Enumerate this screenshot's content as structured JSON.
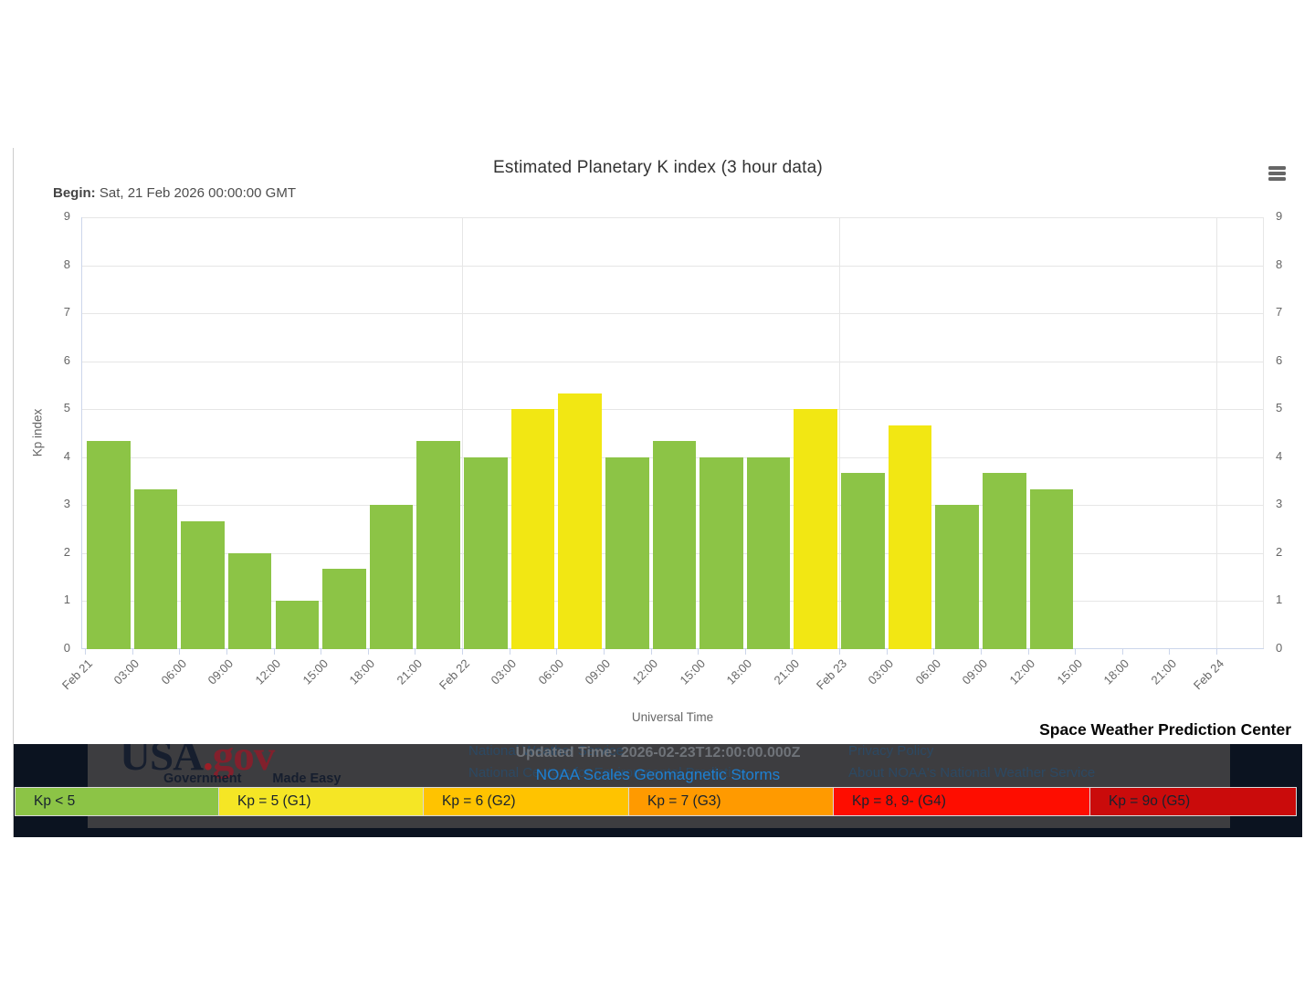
{
  "chart": {
    "title": "Estimated Planetary K index (3 hour data)",
    "begin_label": "Begin:",
    "begin_value": "Sat, 21 Feb 2026 00:00:00 GMT",
    "xlabel": "Universal Time",
    "ylabel": "Kp index",
    "credit": "Space Weather Prediction Center",
    "menu_icon": "hamburger-icon"
  },
  "chart_data": {
    "type": "bar",
    "title": "Estimated Planetary K index (3 hour data)",
    "xlabel": "Universal Time",
    "ylabel": "Kp index",
    "ylim": [
      0,
      9
    ],
    "y_ticks": [
      0,
      1,
      2,
      3,
      4,
      5,
      6,
      7,
      8,
      9
    ],
    "x_tick_labels": [
      "Feb 21",
      "03:00",
      "06:00",
      "09:00",
      "12:00",
      "15:00",
      "18:00",
      "21:00",
      "Feb 22",
      "03:00",
      "06:00",
      "09:00",
      "12:00",
      "15:00",
      "18:00",
      "21:00",
      "Feb 23",
      "03:00",
      "06:00",
      "09:00",
      "12:00",
      "15:00",
      "18:00",
      "21:00",
      "Feb 24"
    ],
    "day_gridline_tick_indices": [
      8,
      16,
      24
    ],
    "grid": true,
    "legend_position": "bottom",
    "bar_colors": {
      "green": "#8cc446",
      "yellow": "#f2e713"
    },
    "bars": [
      {
        "slot": "Feb 21 00:00-03:00",
        "value": 4.33,
        "color": "green"
      },
      {
        "slot": "Feb 21 03:00-06:00",
        "value": 3.33,
        "color": "green"
      },
      {
        "slot": "Feb 21 06:00-09:00",
        "value": 2.67,
        "color": "green"
      },
      {
        "slot": "Feb 21 09:00-12:00",
        "value": 2.0,
        "color": "green"
      },
      {
        "slot": "Feb 21 12:00-15:00",
        "value": 1.0,
        "color": "green"
      },
      {
        "slot": "Feb 21 15:00-18:00",
        "value": 1.67,
        "color": "green"
      },
      {
        "slot": "Feb 21 18:00-21:00",
        "value": 3.0,
        "color": "green"
      },
      {
        "slot": "Feb 21 21:00-24:00",
        "value": 4.33,
        "color": "green"
      },
      {
        "slot": "Feb 22 00:00-03:00",
        "value": 4.0,
        "color": "green"
      },
      {
        "slot": "Feb 22 03:00-06:00",
        "value": 5.0,
        "color": "yellow"
      },
      {
        "slot": "Feb 22 06:00-09:00",
        "value": 5.33,
        "color": "yellow"
      },
      {
        "slot": "Feb 22 09:00-12:00",
        "value": 4.0,
        "color": "green"
      },
      {
        "slot": "Feb 22 12:00-15:00",
        "value": 4.33,
        "color": "green"
      },
      {
        "slot": "Feb 22 15:00-18:00",
        "value": 4.0,
        "color": "green"
      },
      {
        "slot": "Feb 22 18:00-21:00",
        "value": 4.0,
        "color": "green"
      },
      {
        "slot": "Feb 22 21:00-24:00",
        "value": 5.0,
        "color": "yellow"
      },
      {
        "slot": "Feb 23 00:00-03:00",
        "value": 3.67,
        "color": "green"
      },
      {
        "slot": "Feb 23 03:00-06:00",
        "value": 4.67,
        "color": "yellow"
      },
      {
        "slot": "Feb 23 06:00-09:00",
        "value": 3.0,
        "color": "green"
      },
      {
        "slot": "Feb 23 09:00-12:00",
        "value": 3.67,
        "color": "green"
      },
      {
        "slot": "Feb 23 12:00-15:00",
        "value": 3.33,
        "color": "green"
      }
    ]
  },
  "kp_legend": {
    "items": [
      {
        "label": "Kp < 5",
        "color": "#8cc446"
      },
      {
        "label": "Kp = 5 (G1)",
        "color": "#f5e625"
      },
      {
        "label": "Kp = 6 (G2)",
        "color": "#ffc300"
      },
      {
        "label": "Kp = 7 (G3)",
        "color": "#ff9a00"
      },
      {
        "label": "Kp = 8, 9- (G4)",
        "color": "#fe0d00"
      },
      {
        "label": "Kp = 9o (G5)",
        "color": "#ca0b0b"
      }
    ]
  },
  "footer": {
    "logo": {
      "usa": "USA",
      "dot": ".",
      "gov": "gov",
      "tagline_left": "Government",
      "tagline_right": "Made Easy"
    },
    "updated_time": "Updated Time: 2026-02-23T12:00:00.000Z",
    "noaa_scales_link": "NOAA Scales Geomagnetic Storms",
    "links_left": [
      "National Weather Service",
      "National Centers for Environmental Prediction",
      "Space Weather Prediction Center"
    ],
    "links_right": [
      "Privacy Policy",
      "About NOAA's National Weather Service",
      "Careers in Weather"
    ]
  }
}
